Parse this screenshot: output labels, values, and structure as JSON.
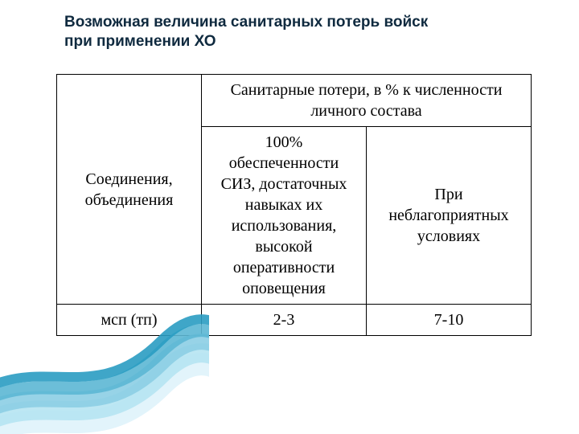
{
  "title_line1": "Возможная величина санитарных потерь войск",
  "title_line2": "при применении ХО",
  "table": {
    "row_header_left": "Соединения, объединения",
    "header_span": "Санитарные потери, в % к численности личного состава",
    "sub_header_1": "100% обеспеченности СИЗ, достаточных навыках их использования, высокой оперативности оповещения",
    "sub_header_2": "При неблагоприятных условиях",
    "row1_label": "мсп (тп)",
    "row1_v1": "2-3",
    "row1_v2": "7-10"
  },
  "decor": {
    "colors": [
      "#dff3fb",
      "#b6e4f2",
      "#8ccee4",
      "#5cb7d4",
      "#2a9cc2"
    ],
    "widths": [
      28,
      24,
      20,
      16,
      12
    ]
  }
}
